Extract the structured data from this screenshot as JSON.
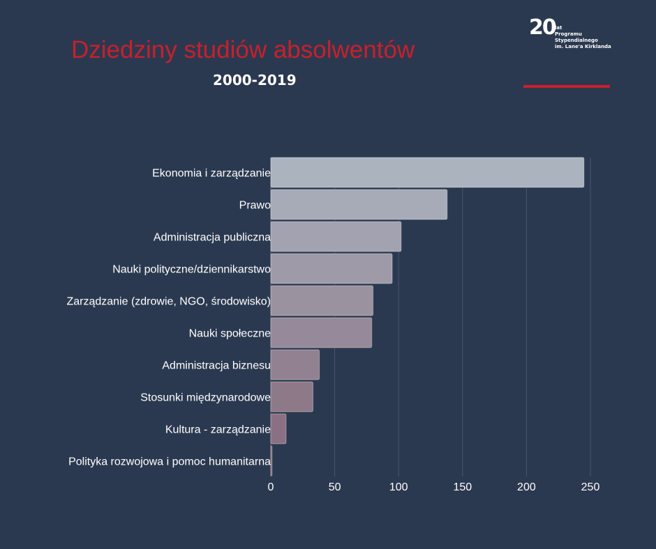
{
  "header": {
    "title": "Dziedziny studiów absolwentów",
    "subtitle": "2000-2019"
  },
  "logo": {
    "number": "20",
    "lines": [
      "lat",
      "Programu",
      "Stypendialnego",
      "im. Lane'a Kirklanda"
    ]
  },
  "colors": {
    "background": "#2b3950",
    "accent": "#c8202b",
    "bar_top": "#abb3bf",
    "bar_bottom": "#86687a"
  },
  "chart_data": {
    "type": "bar",
    "orientation": "horizontal",
    "title": "",
    "xlabel": "",
    "ylabel": "",
    "categories": [
      "Ekonomia i zarządzanie",
      "Prawo",
      "Administracja publiczna",
      "Nauki polityczne/dziennikarstwo",
      "Zarządzanie (zdrowie, NGO, środowisko)",
      "Nauki społeczne",
      "Administracja biznesu",
      "Stosunki międzynarodowe",
      "Kultura - zarządzanie",
      "Polityka rozwojowa i pomoc humanitarna"
    ],
    "values": [
      245,
      138,
      102,
      95,
      80,
      79,
      38,
      33,
      12,
      1
    ],
    "xlim": [
      0,
      250
    ],
    "xticks": [
      0,
      50,
      100,
      150,
      200,
      250
    ],
    "grid": true
  }
}
